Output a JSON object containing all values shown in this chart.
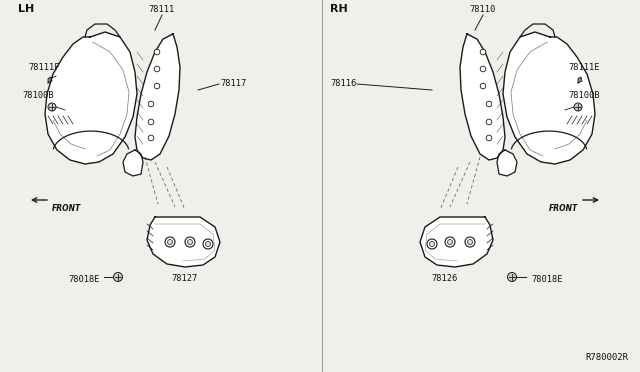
{
  "bg_color": "#f0f0eb",
  "lh_label": "LH",
  "rh_label": "RH",
  "diagram_ref": "R780002R",
  "lh_parts": {
    "main_label": "78111",
    "inner_label": "78117",
    "clip_label1": "78111F",
    "clip_label2": "78100B",
    "bracket_label": "78127",
    "bolt_label": "78018E",
    "front_text": "FRONT"
  },
  "rh_parts": {
    "main_label": "78110",
    "inner_label": "78116",
    "clip_label1": "78111E",
    "clip_label2": "78100B",
    "bracket_label": "78126",
    "bolt_label": "78018E",
    "front_text": "FRONT"
  },
  "line_color": "#1a1a1a",
  "text_color": "#111111",
  "dashed_color": "#555555"
}
